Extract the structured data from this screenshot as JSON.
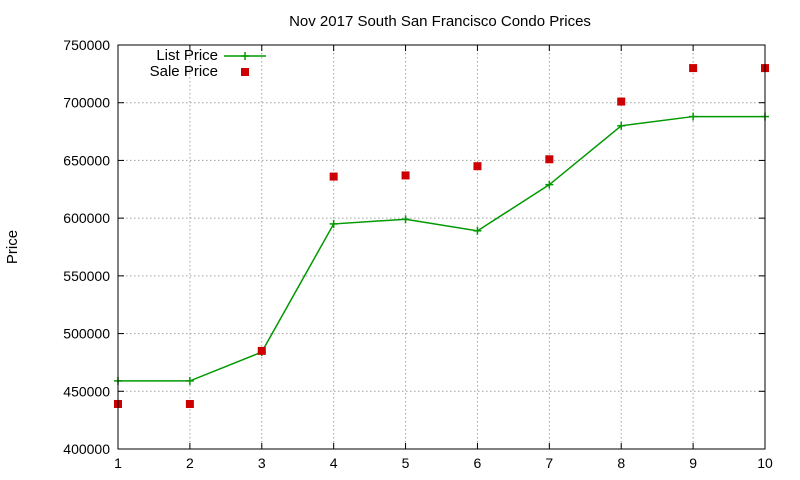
{
  "chart_data": {
    "type": "line",
    "title": "Nov 2017 South San Francisco Condo Prices",
    "xlabel": "",
    "ylabel": "Price",
    "xlim": [
      1,
      10
    ],
    "ylim": [
      400000,
      750000
    ],
    "xticks": [
      "1",
      "2",
      "3",
      "4",
      "5",
      "6",
      "7",
      "8",
      "9",
      "10"
    ],
    "yticks": [
      "400000",
      "450000",
      "500000",
      "550000",
      "600000",
      "650000",
      "700000",
      "750000"
    ],
    "grid": true,
    "legend_position": "top-left",
    "series": [
      {
        "name": "List Price",
        "style": "line-points",
        "marker": "plus",
        "color": "#009900",
        "x": [
          1,
          2,
          3,
          4,
          5,
          6,
          7,
          8,
          9,
          10
        ],
        "values": [
          459000,
          459000,
          484000,
          595000,
          599000,
          589000,
          629000,
          680000,
          688000,
          688000
        ]
      },
      {
        "name": "Sale Price",
        "style": "points",
        "marker": "square",
        "color": "#cc0000",
        "x": [
          1,
          2,
          3,
          4,
          5,
          6,
          7,
          8,
          9,
          10
        ],
        "values": [
          439000,
          439000,
          485000,
          636000,
          637000,
          645000,
          651000,
          701000,
          730000,
          730000
        ]
      }
    ]
  }
}
